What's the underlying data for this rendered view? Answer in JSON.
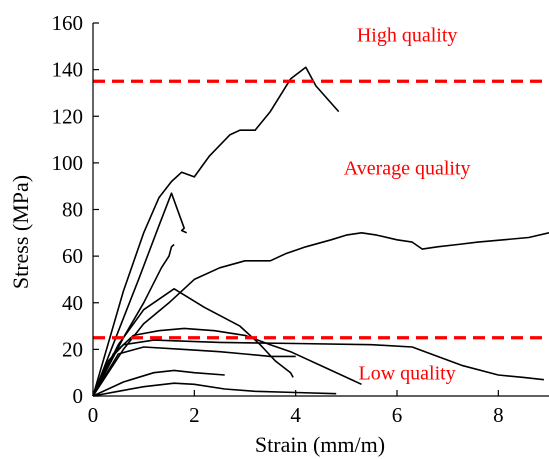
{
  "chart_data": {
    "type": "line",
    "xlabel": "Strain (mm/m)",
    "ylabel": "Stress (MPa)",
    "xlim": [
      0,
      9
    ],
    "ylim": [
      0,
      160
    ],
    "xticks": [
      0,
      2,
      4,
      6,
      8
    ],
    "yticks": [
      0,
      20,
      40,
      60,
      80,
      100,
      120,
      140,
      160
    ],
    "grid": false,
    "series": [
      {
        "values": [
          [
            0,
            0
          ],
          [
            0.6,
            45
          ],
          [
            1.0,
            70
          ],
          [
            1.3,
            85
          ],
          [
            1.55,
            92
          ],
          [
            1.75,
            96
          ],
          [
            2.0,
            94
          ],
          [
            2.3,
            103
          ],
          [
            2.7,
            112
          ],
          [
            2.9,
            114
          ],
          [
            3.2,
            114
          ],
          [
            3.5,
            122
          ],
          [
            3.9,
            136
          ],
          [
            4.2,
            141
          ],
          [
            4.4,
            133
          ],
          [
            4.85,
            122
          ]
        ]
      },
      {
        "values": [
          [
            0,
            0
          ],
          [
            0.9,
            50
          ],
          [
            1.3,
            73
          ],
          [
            1.55,
            87
          ],
          [
            1.7,
            78
          ],
          [
            1.8,
            72
          ],
          [
            1.75,
            71
          ],
          [
            1.85,
            70
          ]
        ]
      },
      {
        "values": [
          [
            0,
            0
          ],
          [
            0.6,
            25
          ],
          [
            1.0,
            40
          ],
          [
            1.35,
            55
          ],
          [
            1.5,
            60
          ],
          [
            1.55,
            64
          ],
          [
            1.6,
            65
          ]
        ]
      },
      {
        "values": [
          [
            0,
            0
          ],
          [
            0.6,
            20
          ],
          [
            1.0,
            31
          ],
          [
            1.5,
            40
          ],
          [
            2.0,
            50
          ],
          [
            2.5,
            55
          ],
          [
            3.0,
            58
          ],
          [
            3.5,
            58
          ],
          [
            3.8,
            61
          ],
          [
            4.2,
            64
          ],
          [
            4.7,
            67
          ],
          [
            5.0,
            69
          ],
          [
            5.3,
            70
          ],
          [
            5.6,
            69
          ],
          [
            6.0,
            67
          ],
          [
            6.3,
            66
          ],
          [
            6.5,
            63
          ],
          [
            6.8,
            64
          ],
          [
            7.2,
            65
          ],
          [
            7.6,
            66
          ],
          [
            8.1,
            67
          ],
          [
            8.6,
            68
          ],
          [
            9.0,
            70
          ]
        ]
      },
      {
        "values": [
          [
            0,
            0
          ],
          [
            0.5,
            22
          ],
          [
            1.0,
            37
          ],
          [
            1.6,
            46
          ],
          [
            2.2,
            38
          ],
          [
            2.9,
            30
          ],
          [
            3.3,
            22
          ],
          [
            3.6,
            15
          ],
          [
            3.9,
            10
          ],
          [
            3.95,
            8
          ]
        ]
      },
      {
        "values": [
          [
            0,
            0
          ],
          [
            0.4,
            18
          ],
          [
            0.8,
            26
          ],
          [
            1.3,
            28
          ],
          [
            1.8,
            29
          ],
          [
            2.4,
            28
          ],
          [
            3.0,
            26
          ],
          [
            3.5,
            22
          ],
          [
            3.9,
            19
          ],
          [
            4.2,
            16
          ],
          [
            4.6,
            12
          ],
          [
            5.3,
            5
          ]
        ]
      },
      {
        "values": [
          [
            0,
            0
          ],
          [
            0.3,
            15
          ],
          [
            0.6,
            22
          ],
          [
            1.2,
            24
          ],
          [
            2.5,
            23
          ],
          [
            4.0,
            22.5
          ],
          [
            5.5,
            22
          ],
          [
            6.3,
            21
          ],
          [
            6.8,
            17
          ],
          [
            7.3,
            13
          ],
          [
            8.0,
            9
          ],
          [
            8.5,
            8
          ],
          [
            8.9,
            7
          ]
        ]
      },
      {
        "values": [
          [
            0,
            0
          ],
          [
            0.5,
            18
          ],
          [
            1.0,
            21
          ],
          [
            1.8,
            20
          ],
          [
            2.5,
            19
          ],
          [
            3.0,
            18
          ],
          [
            3.5,
            17
          ],
          [
            4.0,
            17
          ]
        ]
      },
      {
        "values": [
          [
            0,
            0
          ],
          [
            0.6,
            6
          ],
          [
            1.2,
            10
          ],
          [
            1.6,
            11
          ],
          [
            2.0,
            10
          ],
          [
            2.6,
            9
          ]
        ]
      },
      {
        "values": [
          [
            0,
            0
          ],
          [
            0.5,
            2
          ],
          [
            1.0,
            4
          ],
          [
            1.6,
            5.5
          ],
          [
            2.0,
            5
          ],
          [
            2.6,
            3
          ],
          [
            3.2,
            2
          ],
          [
            4.0,
            1.5
          ],
          [
            4.8,
            1
          ]
        ]
      }
    ],
    "reference_lines": [
      {
        "y": 135,
        "color": "#ff0000",
        "style": "dashed"
      },
      {
        "y": 25,
        "color": "#ff0000",
        "style": "dashed"
      }
    ],
    "annotations": [
      {
        "text": "High quality",
        "x": 6.2,
        "y": 155,
        "color": "#ff0000"
      },
      {
        "text": "Average quality",
        "x": 6.2,
        "y": 98,
        "color": "#ff0000"
      },
      {
        "text": "Low quality",
        "x": 6.2,
        "y": 10,
        "color": "#ff0000"
      }
    ]
  }
}
